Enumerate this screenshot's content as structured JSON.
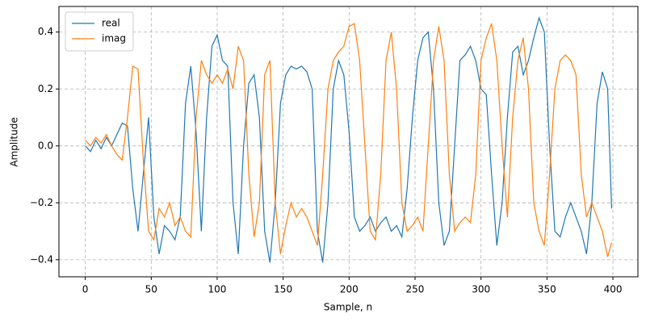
{
  "chart_data": {
    "type": "line",
    "xlabel": "Sample, n",
    "ylabel": "Amplitude",
    "x": [
      0,
      4,
      8,
      12,
      16,
      20,
      24,
      28,
      32,
      36,
      40,
      44,
      48,
      52,
      56,
      60,
      64,
      68,
      72,
      76,
      80,
      84,
      88,
      92,
      96,
      100,
      104,
      108,
      112,
      116,
      120,
      124,
      128,
      132,
      136,
      140,
      144,
      148,
      152,
      156,
      160,
      164,
      168,
      172,
      176,
      180,
      184,
      188,
      192,
      196,
      200,
      204,
      208,
      212,
      216,
      220,
      224,
      228,
      232,
      236,
      240,
      244,
      248,
      252,
      256,
      260,
      264,
      268,
      272,
      276,
      280,
      284,
      288,
      292,
      296,
      300,
      304,
      308,
      312,
      316,
      320,
      324,
      328,
      332,
      336,
      340,
      344,
      348,
      352,
      356,
      360,
      364,
      368,
      372,
      376,
      380,
      384,
      388,
      392,
      396,
      399
    ],
    "series": [
      {
        "name": "real",
        "color": "#1f77b4",
        "values": [
          0,
          -0.02,
          0.02,
          -0.01,
          0.03,
          0,
          0.04,
          0.08,
          0.07,
          -0.15,
          -0.3,
          -0.1,
          0.1,
          -0.25,
          -0.38,
          -0.28,
          -0.3,
          -0.33,
          -0.25,
          0.15,
          0.28,
          0.05,
          -0.3,
          0.1,
          0.35,
          0.39,
          0.3,
          0.28,
          -0.2,
          -0.38,
          0,
          0.22,
          0.25,
          0.1,
          -0.3,
          -0.41,
          -0.2,
          0.15,
          0.25,
          0.28,
          0.27,
          0.28,
          0.26,
          0.2,
          -0.3,
          -0.41,
          -0.2,
          0.2,
          0.3,
          0.25,
          0.05,
          -0.25,
          -0.3,
          -0.28,
          -0.25,
          -0.3,
          -0.27,
          -0.25,
          -0.3,
          -0.28,
          -0.32,
          -0.15,
          0.1,
          0.3,
          0.38,
          0.4,
          0.2,
          -0.2,
          -0.35,
          -0.3,
          0,
          0.3,
          0.32,
          0.35,
          0.3,
          0.2,
          0.18,
          -0.1,
          -0.35,
          -0.2,
          0.1,
          0.33,
          0.35,
          0.25,
          0.3,
          0.38,
          0.45,
          0.4,
          0,
          -0.3,
          -0.32,
          -0.25,
          -0.2,
          -0.25,
          -0.3,
          -0.38,
          -0.2,
          0.15,
          0.26,
          0.2,
          -0.22
        ]
      },
      {
        "name": "imag",
        "color": "#ff7f0e",
        "values": [
          0.02,
          0,
          0.03,
          0.01,
          0.04,
          0,
          -0.03,
          -0.05,
          0.1,
          0.28,
          0.27,
          -0.05,
          -0.3,
          -0.33,
          -0.22,
          -0.25,
          -0.2,
          -0.28,
          -0.25,
          -0.3,
          -0.32,
          0.1,
          0.3,
          0.25,
          0.22,
          0.25,
          0.22,
          0.27,
          0.2,
          0.35,
          0.3,
          -0.1,
          -0.32,
          -0.2,
          0.25,
          0.3,
          -0.2,
          -0.38,
          -0.28,
          -0.2,
          -0.25,
          -0.22,
          -0.25,
          -0.3,
          -0.35,
          -0.1,
          0.2,
          0.3,
          0.33,
          0.35,
          0.42,
          0.43,
          0.3,
          0,
          -0.3,
          -0.33,
          -0.1,
          0.3,
          0.4,
          0.2,
          -0.2,
          -0.3,
          -0.28,
          -0.25,
          -0.3,
          0,
          0.3,
          0.42,
          0.3,
          -0.1,
          -0.3,
          -0.27,
          -0.25,
          -0.27,
          -0.1,
          0.3,
          0.38,
          0.43,
          0.3,
          0,
          -0.25,
          0.1,
          0.3,
          0.38,
          0.2,
          -0.2,
          -0.3,
          -0.35,
          -0.1,
          0.2,
          0.3,
          0.32,
          0.3,
          0.25,
          -0.1,
          -0.25,
          -0.2,
          -0.25,
          -0.3,
          -0.39,
          -0.34
        ]
      }
    ],
    "xlim": [
      -19.95,
      418.95
    ],
    "xticks": [
      0,
      50,
      100,
      150,
      200,
      250,
      300,
      350,
      400
    ],
    "ylim": [
      -0.46,
      0.49
    ],
    "yticks": [
      {
        "value": -0.4,
        "label": "−0.4"
      },
      {
        "value": -0.2,
        "label": "−0.2"
      },
      {
        "value": 0,
        "label": "0.0"
      },
      0.2,
      0.4
    ],
    "grid": true,
    "legend": "upper left"
  }
}
